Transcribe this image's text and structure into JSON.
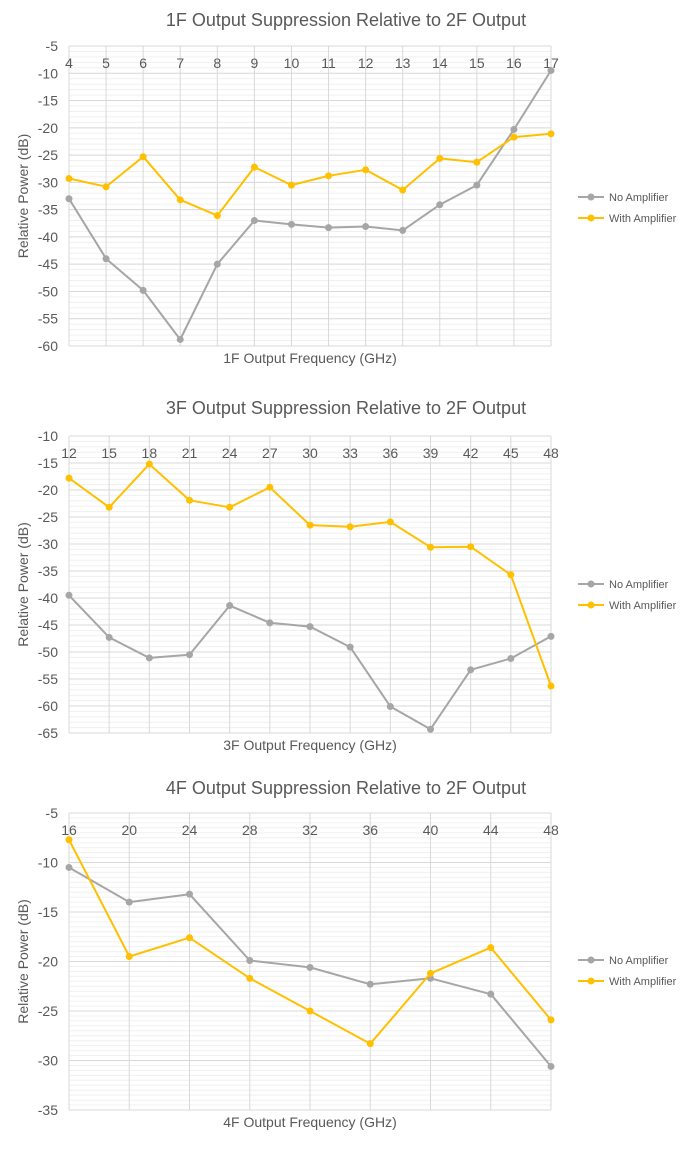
{
  "colors": {
    "no_amplifier": "#a6a6a6",
    "with_amplifier": "#ffc000",
    "grid_major": "#d9d9d9",
    "grid_minor": "#f0f0f0",
    "text": "#595959"
  },
  "chart_data": [
    {
      "type": "line",
      "title": "1F Output Suppression Relative to 2F Output",
      "xlabel": "1F Output Frequency (GHz)",
      "ylabel": "Relative Power (dB)",
      "x": [
        4,
        5,
        6,
        7,
        8,
        9,
        10,
        11,
        12,
        13,
        14,
        15,
        16,
        17
      ],
      "xticks": [
        "4",
        "5",
        "6",
        "7",
        "8",
        "9",
        "10",
        "11",
        "12",
        "13",
        "14",
        "15",
        "16",
        "17"
      ],
      "ylim": [
        -60,
        -5
      ],
      "yticks": [
        "-5",
        "-10",
        "-15",
        "-20",
        "-25",
        "-30",
        "-35",
        "-40",
        "-45",
        "-50",
        "-55",
        "-60"
      ],
      "grid": "major and minor horizontal, vertical at ticks",
      "legend_position": "right",
      "series": [
        {
          "name": "No Amplifier",
          "values": [
            -33,
            -44,
            -49.8,
            -58.8,
            -45,
            -37,
            -37.7,
            -38.3,
            -38.1,
            -38.8,
            -34.1,
            -30.5,
            -20.3,
            -9.5
          ]
        },
        {
          "name": "With Amplifier",
          "values": [
            -29.3,
            -30.8,
            -25.3,
            -33.2,
            -36.1,
            -27.2,
            -30.5,
            -28.8,
            -27.7,
            -31.4,
            -25.6,
            -26.3,
            -21.7,
            -21.1
          ]
        }
      ]
    },
    {
      "type": "line",
      "title": "3F Output Suppression Relative to 2F Output",
      "xlabel": "3F Output Frequency (GHz)",
      "ylabel": "Relative Power (dB)",
      "x": [
        12,
        15,
        18,
        21,
        24,
        27,
        30,
        33,
        36,
        39,
        42,
        45,
        48
      ],
      "xticks": [
        "12",
        "15",
        "18",
        "21",
        "24",
        "27",
        "30",
        "33",
        "36",
        "39",
        "42",
        "45",
        "48"
      ],
      "ylim": [
        -65,
        -10
      ],
      "yticks": [
        "-10",
        "-15",
        "-20",
        "-25",
        "-30",
        "-35",
        "-40",
        "-45",
        "-50",
        "-55",
        "-60",
        "-65"
      ],
      "grid": "major and minor horizontal, vertical at ticks",
      "legend_position": "right",
      "series": [
        {
          "name": "No Amplifier",
          "values": [
            -39.5,
            -47.3,
            -51.1,
            -50.5,
            -41.4,
            -44.6,
            -45.3,
            -49.1,
            -60.1,
            -64.3,
            -53.3,
            -51.2,
            -47.1
          ]
        },
        {
          "name": "With Amplifier",
          "values": [
            -17.8,
            -23.2,
            -15.2,
            -21.9,
            -23.2,
            -19.5,
            -26.5,
            -26.8,
            -25.9,
            -30.6,
            -30.5,
            -35.7,
            -56.3
          ]
        }
      ]
    },
    {
      "type": "line",
      "title": "4F Output Suppression Relative to 2F Output",
      "xlabel": "4F Output Frequency (GHz)",
      "ylabel": "Relative Power (dB)",
      "x": [
        16,
        20,
        24,
        28,
        32,
        36,
        40,
        44,
        48
      ],
      "xticks": [
        "16",
        "20",
        "24",
        "28",
        "32",
        "36",
        "40",
        "44",
        "48"
      ],
      "ylim": [
        -35,
        -5
      ],
      "yticks": [
        "-5",
        "-10",
        "-15",
        "-20",
        "-25",
        "-30",
        "-35"
      ],
      "grid": "major and minor horizontal, vertical at ticks",
      "legend_position": "right",
      "series": [
        {
          "name": "No Amplifier",
          "values": [
            -10.5,
            -14,
            -13.2,
            -19.9,
            -20.6,
            -22.3,
            -21.7,
            -23.3,
            -30.6
          ]
        },
        {
          "name": "With Amplifier",
          "values": [
            -7.7,
            -19.5,
            -17.6,
            -21.7,
            -25,
            -28.3,
            -21.2,
            -18.6,
            -25.9
          ]
        }
      ]
    }
  ]
}
